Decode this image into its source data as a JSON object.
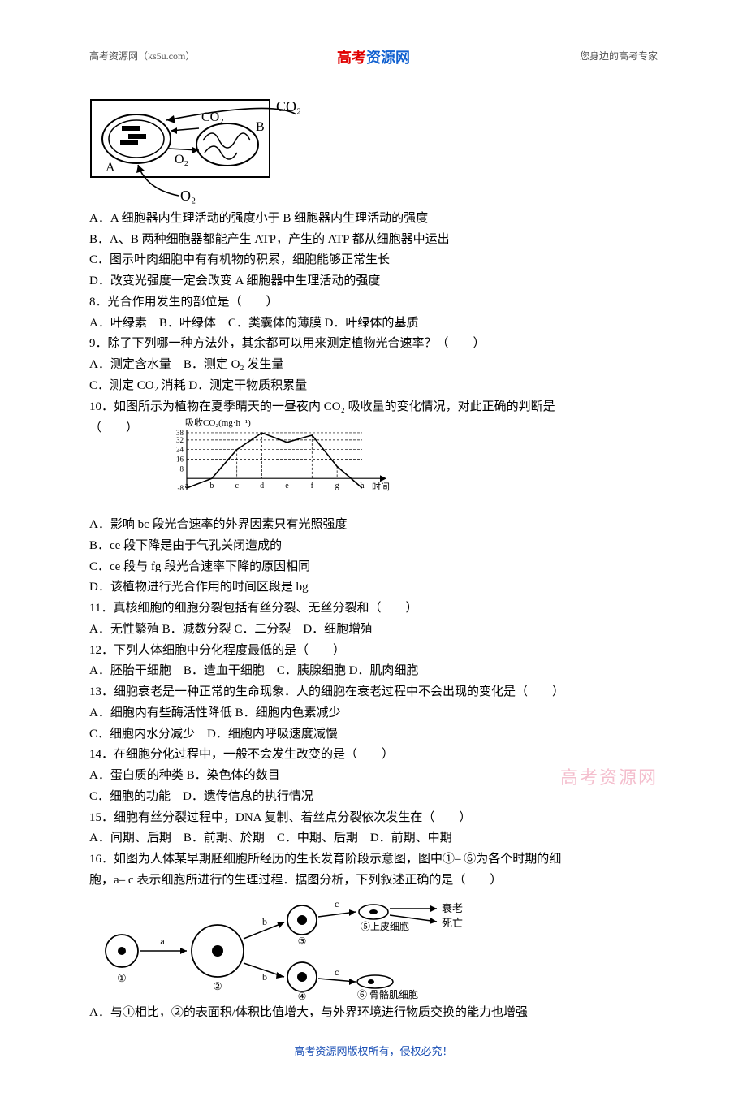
{
  "header": {
    "left": "高考资源网（ks5u.com）",
    "center_red": "高考",
    "center_blue": "资源网",
    "right": "您身边的高考专家"
  },
  "watermark": "高考资源网",
  "footer": "高考资源网版权所有，侵权必究！",
  "fig1": {
    "labels": {
      "A": "A",
      "B": "B",
      "CO2_inner": "CO₂",
      "CO2_outer": "CO₂",
      "O2_inner": "O₂",
      "O2_lower": "O₂"
    },
    "stroke": "#000",
    "stroke_width": 1.6
  },
  "q7": {
    "A": "A．A 细胞器内生理活动的强度小于 B 细胞器内生理活动的强度",
    "B": "B．A、B 两种细胞器都能产生 ATP，产生的 ATP 都从细胞器中运出",
    "C": "C．图示叶肉细胞中有有机物的积累，细胞能够正常生长",
    "D": "D．改变光强度一定会改变 A 细胞器中生理活动的强度"
  },
  "q8": {
    "stem": "8．光合作用发生的部位是（　　）",
    "opts": "A．叶绿素　B．叶绿体　C．类囊体的薄膜 D．叶绿体的基质"
  },
  "q9": {
    "stem": "9．除了下列哪一种方法外，其余都可以用来测定植物光合速率？（　　）",
    "optA": "A．测定含水量　B．测定 O₂ 发生量",
    "optC": "C．测定 CO₂ 消耗 D．测定干物质积累量"
  },
  "q10": {
    "stem": "10．如图所示为植物在夏季晴天的一昼夜内 CO₂ 吸收量的变化情况，对此正确的判断是",
    "paren": "（　　）",
    "A": "A．影响 bc 段光合速率的外界因素只有光照强度",
    "B": "B．ce 段下降是由于气孔关闭造成的",
    "C": "C．ce 段与 fg 段光合速率下降的原因相同",
    "D": "D．该植物进行光合作用的时间区段是 bg"
  },
  "chart10": {
    "ylabel": "吸收CO₂(mg·h⁻¹)",
    "xlabel": "时间",
    "yticks": [
      "38",
      "32",
      "24",
      "16",
      "8",
      "-8"
    ],
    "xticks": [
      "a",
      "b",
      "c",
      "d",
      "e",
      "f",
      "g",
      "h"
    ],
    "axis_color": "#000",
    "line_color": "#000",
    "grid_dash": "3,2",
    "points": [
      {
        "xi": 0,
        "y": -8
      },
      {
        "xi": 1,
        "y": 0
      },
      {
        "xi": 2,
        "y": 24
      },
      {
        "xi": 3,
        "y": 38
      },
      {
        "xi": 4,
        "y": 30
      },
      {
        "xi": 5,
        "y": 36
      },
      {
        "xi": 6,
        "y": 10
      },
      {
        "xi": 7,
        "y": -8
      }
    ],
    "ymin": -10,
    "ymax": 40
  },
  "q11": {
    "stem": "11．真核细胞的细胞分裂包括有丝分裂、无丝分裂和（　　）",
    "opts": "A．无性繁殖 B．减数分裂 C．二分裂　D．细胞增殖"
  },
  "q12": {
    "stem": "12．下列人体细胞中分化程度最低的是（　　）",
    "opts": "A．胚胎干细胞　B．造血干细胞　C．胰腺细胞 D．肌肉细胞"
  },
  "q13": {
    "stem": "13．细胞衰老是一种正常的生命现象．人的细胞在衰老过程中不会出现的变化是（　　）",
    "optA": "A．细胞内有些酶活性降低 B．细胞内色素减少",
    "optC": "C．细胞内水分减少　D．细胞内呼吸速度减慢"
  },
  "q14": {
    "stem": "14．在细胞分化过程中，一般不会发生改变的是（　　）",
    "optA": "A．蛋白质的种类 B．染色体的数目",
    "optC": "C．细胞的功能　D．遗传信息的执行情况"
  },
  "q15": {
    "stem": "15．细胞有丝分裂过程中，DNA 复制、着丝点分裂依次发生在（　　）",
    "opts": "A．间期、后期　B．前期、於期　C．中期、后期　D．前期、中期"
  },
  "q16": {
    "stem1": "16．如图为人体某早期胚细胞所经历的生长发育阶段示意图，图中①– ⑥为各个时期的细",
    "stem2": "胞，a– c 表示细胞所进行的生理过程．据图分析，下列叙述正确的是（　　）",
    "A": "A．与①相比，②的表面积/体积比值增大，与外界环境进行物质交换的能力也增强"
  },
  "fig16": {
    "labels": {
      "a": "a",
      "b1": "b",
      "b2": "b",
      "c1": "c",
      "c2": "c",
      "n1": "①",
      "n2": "②",
      "n3": "③",
      "n4": "④",
      "n5": "⑤上皮细胞",
      "n6": "⑥ 骨骼肌细胞",
      "fate1": "衰老",
      "fate2": "死亡"
    },
    "stroke": "#000"
  }
}
